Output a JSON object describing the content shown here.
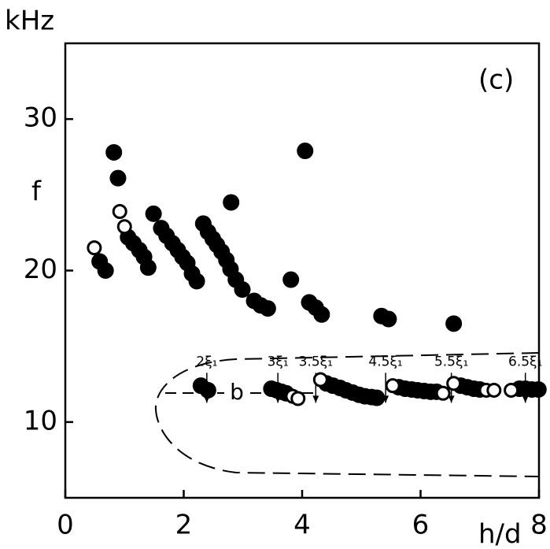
{
  "chart_data": {
    "type": "scatter",
    "y_unit": "kHz",
    "ylabel": "f",
    "xlabel": "h/d",
    "panel": "(c)",
    "xlim": [
      0,
      8
    ],
    "ylim": [
      5,
      35
    ],
    "xticks": [
      0,
      2,
      4,
      6,
      8
    ],
    "yticks": [
      10,
      20,
      30
    ],
    "series": [
      {
        "name": "filled",
        "color": "#000000",
        "marker": "filled",
        "x": [
          0.58,
          0.68,
          0.82,
          0.89,
          1.06,
          1.15,
          1.25,
          1.33,
          1.4,
          1.49,
          1.62,
          1.71,
          1.81,
          1.9,
          1.98,
          2.06,
          2.14,
          2.22,
          2.8,
          2.33,
          2.41,
          2.49,
          2.56,
          2.64,
          2.72,
          2.79,
          2.88,
          2.99,
          3.19,
          3.3,
          3.42,
          4.05,
          3.81,
          4.12,
          4.23,
          4.33,
          5.34,
          5.46,
          6.56,
          2.29,
          2.41,
          3.48,
          3.57,
          3.65,
          3.73,
          4.41,
          4.52,
          4.64,
          4.74,
          4.85,
          4.96,
          5.06,
          5.17,
          5.26,
          5.63,
          5.74,
          5.85,
          5.95,
          6.06,
          6.17,
          6.27,
          6.68,
          6.79,
          6.9,
          7.0,
          7.67,
          7.77,
          7.88,
          7.99
        ],
        "values": [
          20.6,
          20.0,
          27.8,
          26.1,
          22.2,
          21.8,
          21.35,
          20.9,
          20.2,
          23.75,
          22.8,
          22.3,
          21.8,
          21.35,
          20.9,
          20.5,
          19.8,
          19.3,
          24.5,
          23.1,
          22.55,
          22.1,
          21.7,
          21.25,
          20.7,
          20.1,
          19.4,
          18.75,
          18.0,
          17.7,
          17.5,
          27.9,
          19.4,
          17.9,
          17.55,
          17.1,
          17.0,
          16.8,
          16.5,
          12.4,
          12.1,
          12.2,
          12.1,
          12.0,
          11.9,
          12.55,
          12.4,
          12.25,
          12.1,
          11.95,
          11.8,
          11.7,
          11.65,
          11.6,
          12.3,
          12.2,
          12.15,
          12.1,
          12.05,
          12.0,
          12.0,
          12.4,
          12.3,
          12.2,
          12.15,
          12.2,
          12.2,
          12.15,
          12.15
        ]
      },
      {
        "name": "open",
        "color": "#000000",
        "marker": "open",
        "x": [
          0.49,
          0.92,
          1.0,
          3.84,
          3.93,
          4.31,
          5.53,
          6.38,
          6.56,
          7.11,
          7.24,
          7.53
        ],
        "values": [
          21.5,
          23.9,
          22.9,
          11.7,
          11.55,
          12.8,
          12.4,
          11.9,
          12.55,
          12.1,
          12.1,
          12.1
        ]
      }
    ],
    "annotations": [
      {
        "text": "2ξ₁",
        "x": 2.39
      },
      {
        "text": "3ξ₁",
        "x": 3.59
      },
      {
        "text": "3.5ξ₁",
        "x": 4.23
      },
      {
        "text": "4.5ξ₁",
        "x": 5.41
      },
      {
        "text": "5.5ξ₁",
        "x": 6.52
      },
      {
        "text": "6.5ξ₁",
        "x": 7.77
      }
    ],
    "curve_label": "b"
  }
}
